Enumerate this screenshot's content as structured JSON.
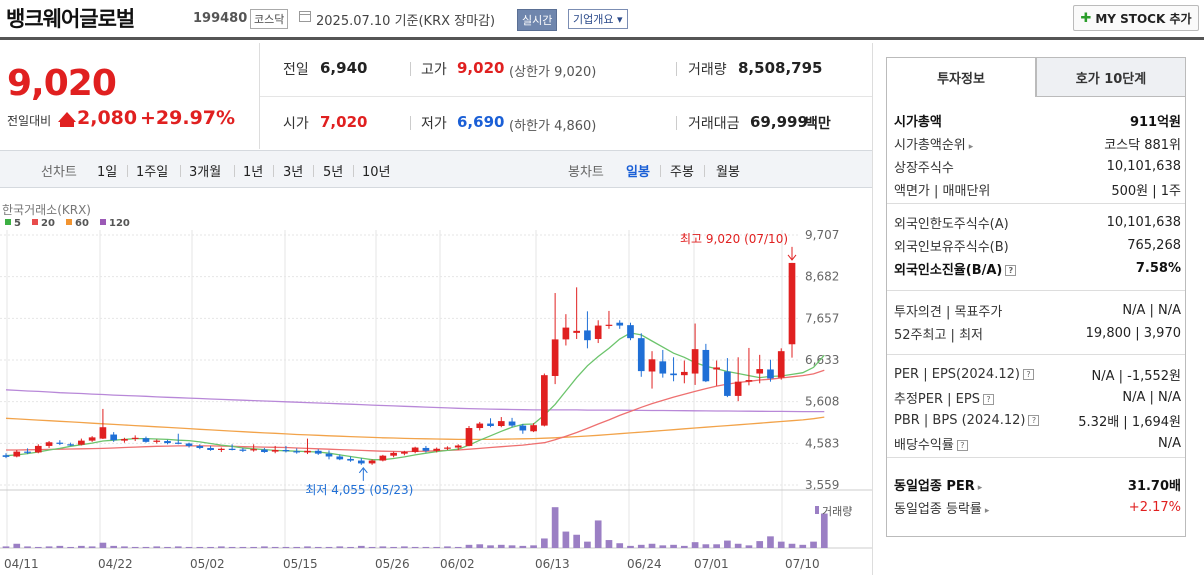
{
  "header": {
    "company": "뱅크웨어글로벌",
    "code": "199480",
    "market": "코스닥",
    "base_date": "2025.07.10  기준(KRX 장마감)",
    "realtime": "실시간",
    "overview": "기업개요 ▾",
    "mystock": "MY STOCK 추가"
  },
  "price": {
    "current": "9,020",
    "change_label": "전일대비",
    "change": "2,080",
    "change_pct": "+29.97%"
  },
  "info": {
    "prev_label": "전일",
    "prev": "6,940",
    "high_label": "고가",
    "high": "9,020",
    "upper_limit": "(상한가 9,020)",
    "volume_label": "거래량",
    "volume": "8,508,795",
    "open_label": "시가",
    "open": "7,020",
    "low_label": "저가",
    "low": "6,690",
    "lower_limit": "(하한가 4,860)",
    "amount_label": "거래대금",
    "amount": "69,999",
    "amount_unit": "백만"
  },
  "periods": {
    "line_label": "선차트",
    "line_items": [
      "1일",
      "1주일",
      "3개월",
      "1년",
      "3년",
      "5년",
      "10년"
    ],
    "candle_label": "봉차트",
    "candle_items": [
      "일봉",
      "주봉",
      "월봉"
    ],
    "candle_selected": "일봉"
  },
  "chart_data": {
    "type": "candlestick",
    "source": "한국거래소(KRX)",
    "legend": [
      {
        "name": "5",
        "color": "#3cb043"
      },
      {
        "name": "20",
        "color": "#e84c4c"
      },
      {
        "name": "60",
        "color": "#f29430"
      },
      {
        "name": "120",
        "color": "#9b59b6"
      }
    ],
    "ylim": [
      3559,
      9707
    ],
    "y_ticks": [
      "9,707",
      "8,682",
      "7,657",
      "6,633",
      "5,608",
      "4,583",
      "3,559"
    ],
    "x_ticks": [
      "04/11",
      "04/22",
      "05/02",
      "05/15",
      "05/26",
      "06/02",
      "06/13",
      "06/24",
      "07/01",
      "07/10"
    ],
    "max_annotation": "최고 9,020 (07/10)",
    "min_annotation": "최저 4,055 (05/23)",
    "volume_label": "거래량",
    "candles": [
      {
        "o": 4290,
        "h": 4340,
        "l": 4220,
        "c": 4250
      },
      {
        "o": 4260,
        "h": 4420,
        "l": 4240,
        "c": 4380
      },
      {
        "o": 4380,
        "h": 4460,
        "l": 4320,
        "c": 4350
      },
      {
        "o": 4360,
        "h": 4560,
        "l": 4340,
        "c": 4520
      },
      {
        "o": 4520,
        "h": 4640,
        "l": 4470,
        "c": 4610
      },
      {
        "o": 4600,
        "h": 4660,
        "l": 4540,
        "c": 4570
      },
      {
        "o": 4560,
        "h": 4600,
        "l": 4520,
        "c": 4540
      },
      {
        "o": 4550,
        "h": 4700,
        "l": 4530,
        "c": 4650
      },
      {
        "o": 4650,
        "h": 4760,
        "l": 4620,
        "c": 4730
      },
      {
        "o": 4700,
        "h": 5430,
        "l": 4690,
        "c": 4980
      },
      {
        "o": 4800,
        "h": 4860,
        "l": 4620,
        "c": 4660
      },
      {
        "o": 4650,
        "h": 4720,
        "l": 4600,
        "c": 4690
      },
      {
        "o": 4690,
        "h": 4780,
        "l": 4640,
        "c": 4720
      },
      {
        "o": 4710,
        "h": 4750,
        "l": 4600,
        "c": 4620
      },
      {
        "o": 4620,
        "h": 4680,
        "l": 4580,
        "c": 4650
      },
      {
        "o": 4640,
        "h": 4670,
        "l": 4560,
        "c": 4590
      },
      {
        "o": 4600,
        "h": 4820,
        "l": 4560,
        "c": 4580
      },
      {
        "o": 4580,
        "h": 4600,
        "l": 4480,
        "c": 4520
      },
      {
        "o": 4520,
        "h": 4560,
        "l": 4440,
        "c": 4470
      },
      {
        "o": 4470,
        "h": 4520,
        "l": 4400,
        "c": 4420
      },
      {
        "o": 4420,
        "h": 4480,
        "l": 4370,
        "c": 4450
      },
      {
        "o": 4450,
        "h": 4560,
        "l": 4410,
        "c": 4430
      },
      {
        "o": 4430,
        "h": 4470,
        "l": 4370,
        "c": 4400
      },
      {
        "o": 4410,
        "h": 4560,
        "l": 4380,
        "c": 4440
      },
      {
        "o": 4430,
        "h": 4470,
        "l": 4350,
        "c": 4370
      },
      {
        "o": 4380,
        "h": 4520,
        "l": 4340,
        "c": 4420
      },
      {
        "o": 4420,
        "h": 4520,
        "l": 4360,
        "c": 4390
      },
      {
        "o": 4390,
        "h": 4460,
        "l": 4330,
        "c": 4360
      },
      {
        "o": 4360,
        "h": 4700,
        "l": 4320,
        "c": 4400
      },
      {
        "o": 4400,
        "h": 4440,
        "l": 4300,
        "c": 4330
      },
      {
        "o": 4330,
        "h": 4410,
        "l": 4190,
        "c": 4260
      },
      {
        "o": 4260,
        "h": 4310,
        "l": 4170,
        "c": 4190
      },
      {
        "o": 4200,
        "h": 4260,
        "l": 4130,
        "c": 4160
      },
      {
        "o": 4160,
        "h": 4220,
        "l": 4055,
        "c": 4090
      },
      {
        "o": 4090,
        "h": 4190,
        "l": 4055,
        "c": 4160
      },
      {
        "o": 4160,
        "h": 4300,
        "l": 4140,
        "c": 4280
      },
      {
        "o": 4280,
        "h": 4380,
        "l": 4240,
        "c": 4350
      },
      {
        "o": 4330,
        "h": 4400,
        "l": 4290,
        "c": 4370
      },
      {
        "o": 4370,
        "h": 4500,
        "l": 4340,
        "c": 4480
      },
      {
        "o": 4470,
        "h": 4520,
        "l": 4360,
        "c": 4400
      },
      {
        "o": 4400,
        "h": 4480,
        "l": 4360,
        "c": 4450
      },
      {
        "o": 4450,
        "h": 4510,
        "l": 4420,
        "c": 4480
      },
      {
        "o": 4480,
        "h": 4560,
        "l": 4420,
        "c": 4530
      },
      {
        "o": 4520,
        "h": 5010,
        "l": 4510,
        "c": 4960
      },
      {
        "o": 4960,
        "h": 5110,
        "l": 4900,
        "c": 5070
      },
      {
        "o": 5070,
        "h": 5200,
        "l": 4980,
        "c": 5010
      },
      {
        "o": 5010,
        "h": 5230,
        "l": 4980,
        "c": 5130
      },
      {
        "o": 5120,
        "h": 5210,
        "l": 4980,
        "c": 5020
      },
      {
        "o": 5020,
        "h": 5060,
        "l": 4820,
        "c": 4900
      },
      {
        "o": 4880,
        "h": 5080,
        "l": 4860,
        "c": 5030
      },
      {
        "o": 5020,
        "h": 6300,
        "l": 5000,
        "c": 6260
      },
      {
        "o": 6240,
        "h": 8280,
        "l": 6040,
        "c": 7140
      },
      {
        "o": 7140,
        "h": 7760,
        "l": 6990,
        "c": 7430
      },
      {
        "o": 7300,
        "h": 8420,
        "l": 7150,
        "c": 7350
      },
      {
        "o": 7360,
        "h": 7830,
        "l": 6920,
        "c": 7120
      },
      {
        "o": 7150,
        "h": 7610,
        "l": 7050,
        "c": 7480
      },
      {
        "o": 7500,
        "h": 7840,
        "l": 7400,
        "c": 7500
      },
      {
        "o": 7550,
        "h": 7610,
        "l": 7400,
        "c": 7480
      },
      {
        "o": 7490,
        "h": 7550,
        "l": 7120,
        "c": 7170
      },
      {
        "o": 7170,
        "h": 7290,
        "l": 6220,
        "c": 6360
      },
      {
        "o": 6350,
        "h": 6850,
        "l": 5930,
        "c": 6650
      },
      {
        "o": 6600,
        "h": 6880,
        "l": 6200,
        "c": 6300
      },
      {
        "o": 6300,
        "h": 6700,
        "l": 6110,
        "c": 6260
      },
      {
        "o": 6260,
        "h": 6620,
        "l": 6060,
        "c": 6340
      },
      {
        "o": 6300,
        "h": 7530,
        "l": 6020,
        "c": 6900
      },
      {
        "o": 6880,
        "h": 7030,
        "l": 6090,
        "c": 6110
      },
      {
        "o": 6400,
        "h": 6620,
        "l": 6000,
        "c": 6450
      },
      {
        "o": 6350,
        "h": 6680,
        "l": 5720,
        "c": 5750
      },
      {
        "o": 5750,
        "h": 6700,
        "l": 5620,
        "c": 6100
      },
      {
        "o": 6100,
        "h": 6930,
        "l": 6010,
        "c": 6140
      },
      {
        "o": 6300,
        "h": 6760,
        "l": 6060,
        "c": 6410
      },
      {
        "o": 6400,
        "h": 6640,
        "l": 6100,
        "c": 6180
      },
      {
        "o": 6200,
        "h": 6920,
        "l": 6150,
        "c": 6850
      },
      {
        "o": 7020,
        "h": 9020,
        "l": 6690,
        "c": 9020
      }
    ],
    "volumes": [
      0.03,
      0.08,
      0.03,
      0.02,
      0.03,
      0.04,
      0.02,
      0.04,
      0.03,
      0.1,
      0.04,
      0.03,
      0.02,
      0.02,
      0.03,
      0.02,
      0.03,
      0.02,
      0.02,
      0.02,
      0.03,
      0.02,
      0.02,
      0.02,
      0.03,
      0.02,
      0.02,
      0.02,
      0.03,
      0.02,
      0.02,
      0.03,
      0.02,
      0.04,
      0.02,
      0.03,
      0.02,
      0.03,
      0.02,
      0.02,
      0.02,
      0.03,
      0.02,
      0.06,
      0.07,
      0.05,
      0.06,
      0.05,
      0.04,
      0.05,
      0.18,
      0.77,
      0.31,
      0.25,
      0.12,
      0.52,
      0.15,
      0.09,
      0.04,
      0.06,
      0.08,
      0.05,
      0.06,
      0.04,
      0.11,
      0.07,
      0.07,
      0.14,
      0.08,
      0.05,
      0.13,
      0.22,
      0.12,
      0.08,
      0.06,
      0.12,
      0.65
    ],
    "ma5": [
      4280,
      4300,
      4330,
      4370,
      4420,
      4460,
      4510,
      4550,
      4590,
      4640,
      4660,
      4680,
      4700,
      4700,
      4690,
      4680,
      4660,
      4650,
      4620,
      4580,
      4540,
      4510,
      4470,
      4450,
      4430,
      4410,
      4400,
      4390,
      4380,
      4370,
      4340,
      4300,
      4260,
      4220,
      4180,
      4180,
      4210,
      4250,
      4300,
      4340,
      4380,
      4410,
      4440,
      4540,
      4660,
      4770,
      4880,
      4980,
      5050,
      5060,
      5280,
      5540,
      5870,
      6200,
      6490,
      6720,
      6920,
      7150,
      7300,
      7250,
      7100,
      6950,
      6800,
      6700,
      6570,
      6480,
      6420,
      6350,
      6300,
      6250,
      6200,
      6230,
      6240,
      6280,
      6320,
      6450,
      6750
    ],
    "ma20": [
      4420,
      4420,
      4425,
      4430,
      4435,
      4440,
      4445,
      4450,
      4455,
      4460,
      4470,
      4480,
      4490,
      4500,
      4510,
      4515,
      4520,
      4520,
      4520,
      4520,
      4515,
      4510,
      4500,
      4495,
      4490,
      4485,
      4480,
      4470,
      4460,
      4450,
      4440,
      4430,
      4420,
      4410,
      4400,
      4390,
      4385,
      4380,
      4385,
      4390,
      4400,
      4410,
      4420,
      4440,
      4460,
      4480,
      4500,
      4520,
      4540,
      4570,
      4600,
      4670,
      4760,
      4850,
      4950,
      5060,
      5160,
      5270,
      5370,
      5470,
      5560,
      5640,
      5720,
      5790,
      5860,
      5930,
      5990,
      6040,
      6080,
      6110,
      6140,
      6160,
      6190,
      6220,
      6250,
      6290,
      6380
    ],
    "ma60": [
      5200,
      5185,
      5170,
      5155,
      5140,
      5125,
      5110,
      5095,
      5080,
      5065,
      5050,
      5035,
      5020,
      5005,
      4990,
      4975,
      4960,
      4945,
      4930,
      4915,
      4900,
      4885,
      4870,
      4855,
      4840,
      4830,
      4815,
      4800,
      4790,
      4780,
      4770,
      4760,
      4750,
      4740,
      4730,
      4720,
      4715,
      4705,
      4700,
      4695,
      4690,
      4685,
      4680,
      4680,
      4680,
      4680,
      4685,
      4690,
      4695,
      4700,
      4710,
      4720,
      4735,
      4750,
      4765,
      4780,
      4800,
      4820,
      4840,
      4860,
      4880,
      4900,
      4920,
      4940,
      4960,
      4980,
      5000,
      5020,
      5040,
      5060,
      5080,
      5100,
      5120,
      5140,
      5160,
      5190,
      5230
    ],
    "ma120": [
      5900,
      5885,
      5870,
      5860,
      5845,
      5830,
      5820,
      5810,
      5795,
      5785,
      5770,
      5760,
      5750,
      5740,
      5725,
      5715,
      5705,
      5695,
      5685,
      5675,
      5665,
      5655,
      5645,
      5635,
      5625,
      5615,
      5605,
      5595,
      5585,
      5575,
      5565,
      5555,
      5545,
      5535,
      5525,
      5515,
      5505,
      5495,
      5485,
      5475,
      5465,
      5455,
      5445,
      5438,
      5430,
      5425,
      5420,
      5415,
      5410,
      5405,
      5405,
      5405,
      5405,
      5405,
      5400,
      5400,
      5400,
      5398,
      5396,
      5394,
      5392,
      5390,
      5388,
      5386,
      5384,
      5382,
      5380,
      5378,
      5376,
      5374,
      5372,
      5370,
      5368,
      5366,
      5364,
      5364,
      5364
    ]
  },
  "panel": {
    "tab_active": "투자정보",
    "tab_other": "호가 10단계",
    "rows": [
      {
        "k": "시가총액",
        "v": "911억원"
      },
      {
        "k": "시가총액순위",
        "v": "코스닥 881위"
      },
      {
        "k": "상장주식수",
        "v": "10,101,638"
      },
      {
        "k": "액면가 | 매매단위",
        "v": "500원 | 1주"
      },
      {
        "k": "외국인한도주식수(A)",
        "v": "10,101,638"
      },
      {
        "k": "외국인보유주식수(B)",
        "v": "765,268"
      },
      {
        "k": "외국인소진율(B/A)",
        "v": "7.58%"
      },
      {
        "k": "투자의견 | 목표주가",
        "v": "N/A | N/A"
      },
      {
        "k": "52주최고 | 최저",
        "v": "19,800 | 3,970"
      },
      {
        "k": "PER | EPS(2024.12)",
        "v": "N/A | -1,552원"
      },
      {
        "k": "추정PER | EPS",
        "v": "N/A | N/A"
      },
      {
        "k": "PBR | BPS (2024.12)",
        "v": "5.32배 | 1,694원"
      },
      {
        "k": "배당수익률",
        "v": "N/A"
      },
      {
        "k": "동일업종 PER",
        "v": "31.70배"
      },
      {
        "k": "동일업종 등락률",
        "v": "+2.17%"
      }
    ]
  }
}
